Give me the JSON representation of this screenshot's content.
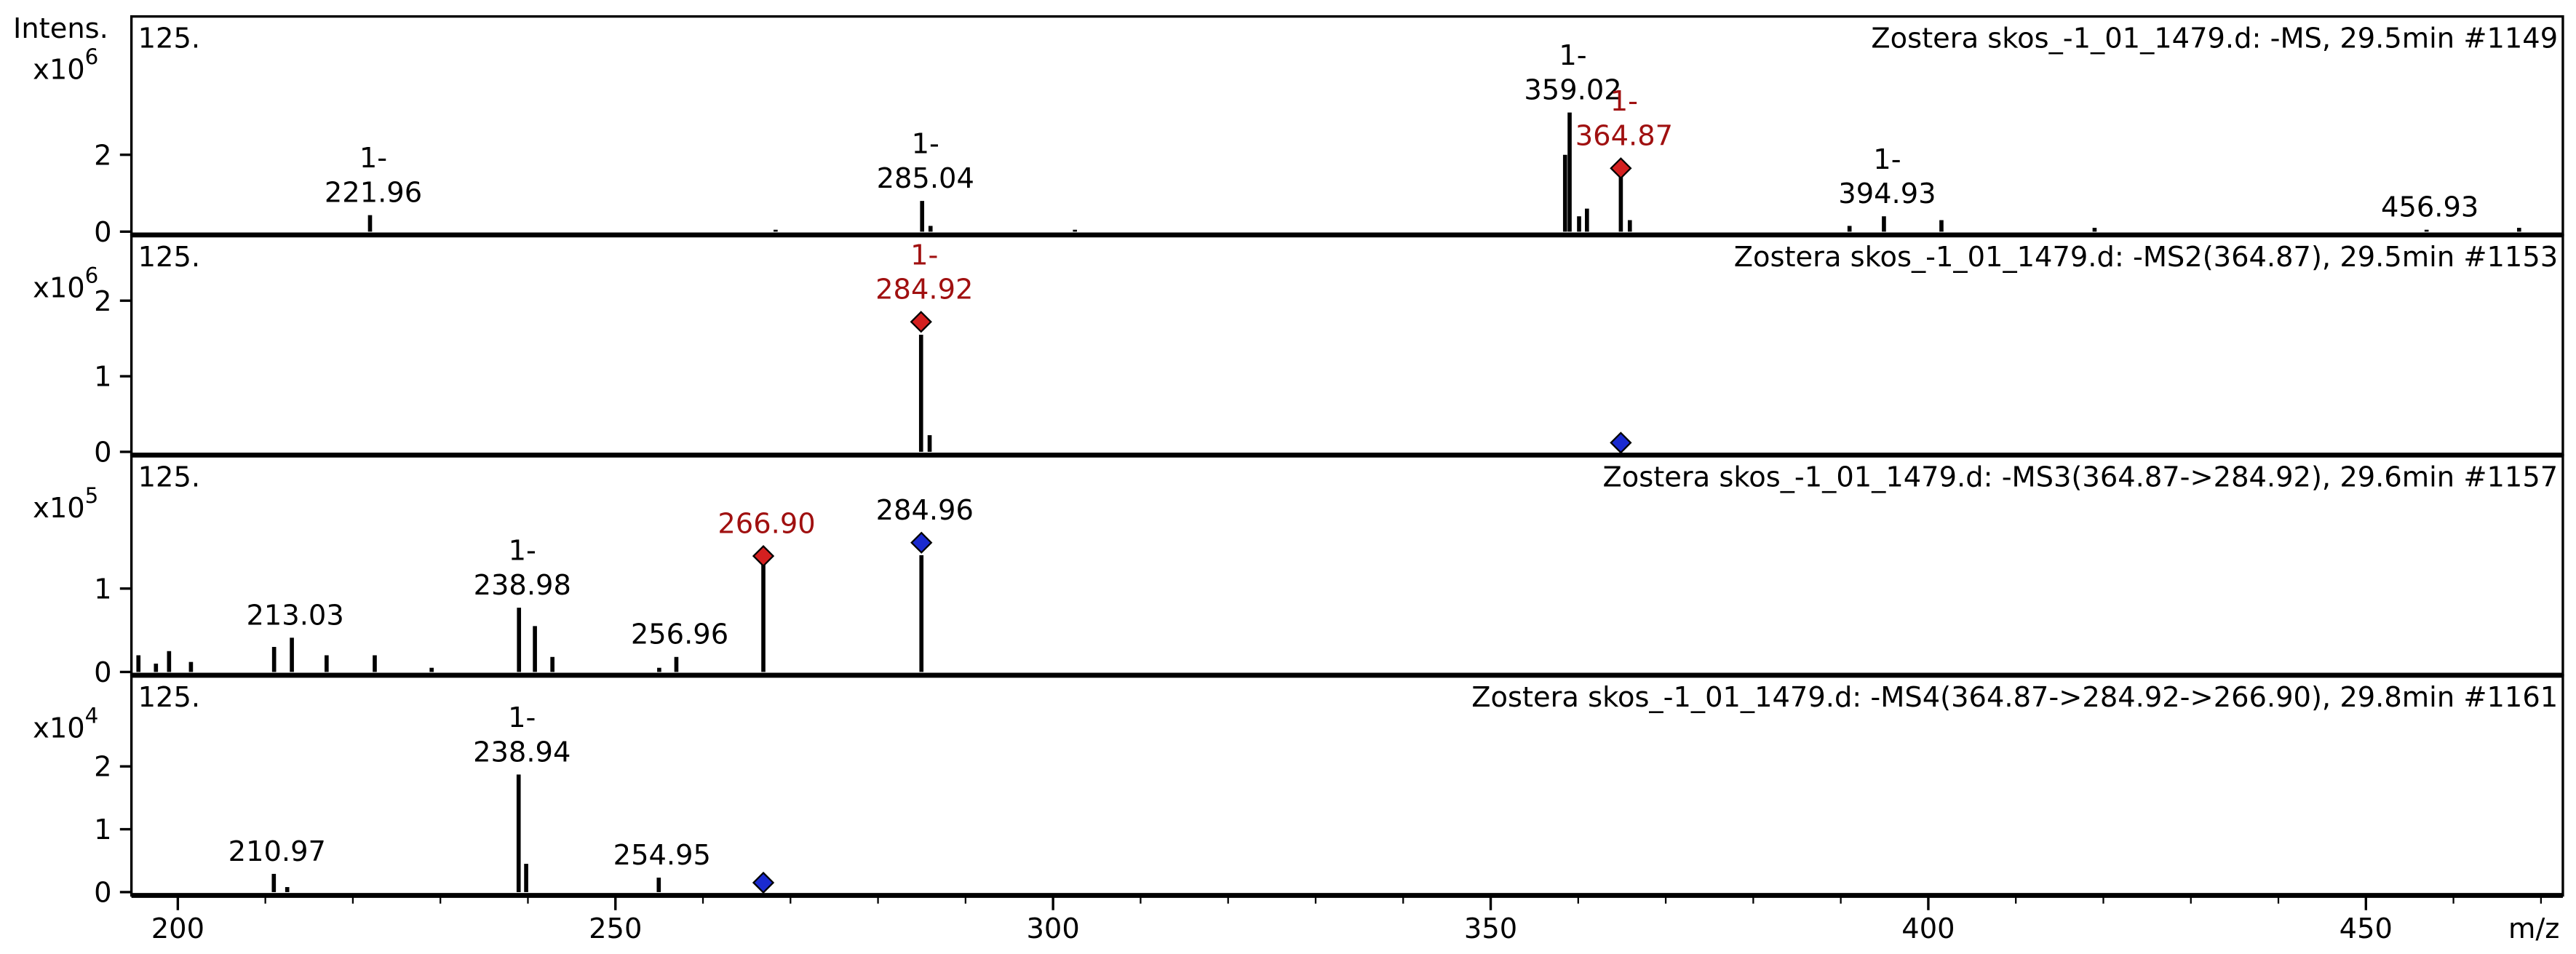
{
  "chart_data": [
    {
      "type": "spectrum",
      "label": "125.",
      "title": "Zostera skos_-1_01_1479.d: -MS, 29.5min #1149",
      "y_axis_title": "Intens.",
      "y_scale": "x10",
      "y_exponent": "6",
      "xlim": [
        194.7,
        472.5
      ],
      "ylim": [
        0,
        5.6
      ],
      "yticks": [
        0,
        2
      ],
      "x": [
        221.96,
        268.3,
        285.04,
        286.0,
        302.5,
        358.5,
        359.02,
        360.1,
        361.0,
        364.87,
        365.9,
        391.0,
        394.93,
        401.5,
        419.0,
        456.93,
        467.5
      ],
      "values": [
        0.43,
        0.05,
        0.8,
        0.15,
        0.05,
        2.0,
        3.1,
        0.4,
        0.6,
        1.6,
        0.3,
        0.15,
        0.4,
        0.3,
        0.1,
        0.05,
        0.1
      ],
      "peak_labels": [
        "221.96",
        null,
        "285.04",
        null,
        null,
        null,
        "359.02",
        null,
        null,
        "364.87",
        null,
        null,
        "394.93",
        null,
        null,
        "456.93",
        null
      ],
      "peak_charges": [
        "1-",
        null,
        "1-",
        null,
        null,
        null,
        "1-",
        null,
        null,
        "1-",
        null,
        null,
        "1-",
        null,
        null,
        null,
        null
      ],
      "label_colors": [
        null,
        null,
        null,
        null,
        null,
        null,
        null,
        null,
        null,
        "#a01010",
        null,
        null,
        null,
        null,
        null,
        null,
        null
      ],
      "markers": [
        {
          "x": 364.87,
          "y": 1.65,
          "color": "#d42020"
        }
      ]
    },
    {
      "type": "spectrum",
      "label": "125.",
      "title": "Zostera skos_-1_01_1479.d: -MS2(364.87), 29.5min #1153",
      "y_scale": "x10",
      "y_exponent": "6",
      "xlim": [
        194.7,
        472.5
      ],
      "ylim": [
        0,
        2.87
      ],
      "yticks": [
        0,
        1,
        2
      ],
      "x": [
        284.92,
        285.9
      ],
      "values": [
        1.55,
        0.22
      ],
      "peak_labels": [
        "284.92",
        null
      ],
      "peak_charges": [
        "1-",
        null
      ],
      "label_colors": [
        "#a01010",
        null
      ],
      "markers": [
        {
          "x": 284.92,
          "y": 1.72,
          "color": "#d42020"
        },
        {
          "x": 364.87,
          "y": 0.12,
          "color": "#1a2ad0"
        }
      ]
    },
    {
      "type": "spectrum",
      "label": "125.",
      "title": "Zostera skos_-1_01_1479.d: -MS3(364.87->284.92), 29.6min #1157",
      "y_scale": "x10",
      "y_exponent": "5",
      "xlim": [
        194.7,
        472.5
      ],
      "ylim": [
        0,
        2.6
      ],
      "yticks": [
        0,
        1
      ],
      "x": [
        195.5,
        197.5,
        199.0,
        201.5,
        211.0,
        213.03,
        217.0,
        222.5,
        229.0,
        238.98,
        240.8,
        242.8,
        255.0,
        256.96,
        266.9,
        284.96
      ],
      "values": [
        0.2,
        0.1,
        0.25,
        0.12,
        0.3,
        0.41,
        0.2,
        0.2,
        0.05,
        0.77,
        0.55,
        0.18,
        0.05,
        0.18,
        1.35,
        1.4
      ],
      "peak_labels": [
        null,
        null,
        null,
        null,
        null,
        "213.03",
        null,
        null,
        null,
        "238.98",
        null,
        null,
        null,
        "256.96",
        "266.90",
        "284.96"
      ],
      "peak_charges": [
        null,
        null,
        null,
        null,
        null,
        null,
        null,
        null,
        null,
        "1-",
        null,
        null,
        null,
        null,
        null,
        null
      ],
      "label_colors": [
        null,
        null,
        null,
        null,
        null,
        null,
        null,
        null,
        null,
        null,
        null,
        null,
        null,
        null,
        "#a01010",
        null
      ],
      "markers": [
        {
          "x": 266.9,
          "y": 1.39,
          "color": "#d42020"
        },
        {
          "x": 284.96,
          "y": 1.55,
          "color": "#1a2ad0"
        }
      ]
    },
    {
      "type": "spectrum",
      "label": "125.",
      "title": "Zostera skos_-1_01_1479.d: -MS4(364.87->284.92->266.90), 29.8min #1161",
      "y_scale": "x10",
      "y_exponent": "4",
      "xlim": [
        194.7,
        472.5
      ],
      "ylim": [
        0,
        3.45
      ],
      "yticks": [
        0,
        1,
        2
      ],
      "x": [
        210.97,
        212.5,
        238.94,
        239.8,
        254.95
      ],
      "values": [
        0.29,
        0.08,
        1.87,
        0.45,
        0.23
      ],
      "peak_labels": [
        "210.97",
        null,
        "238.94",
        null,
        "254.95"
      ],
      "peak_charges": [
        null,
        null,
        "1-",
        null,
        null
      ],
      "label_colors": [
        null,
        null,
        null,
        null,
        null
      ],
      "markers": [
        {
          "x": 266.9,
          "y": 0.15,
          "color": "#1a2ad0"
        }
      ],
      "xticks": [
        200,
        250,
        300,
        350,
        400,
        450
      ],
      "xminorticks": [
        210,
        220,
        230,
        240,
        260,
        270,
        280,
        290,
        310,
        320,
        330,
        340,
        360,
        370,
        380,
        390,
        410,
        420,
        430,
        440,
        460,
        470
      ],
      "x_axis_title": "m/z"
    }
  ]
}
